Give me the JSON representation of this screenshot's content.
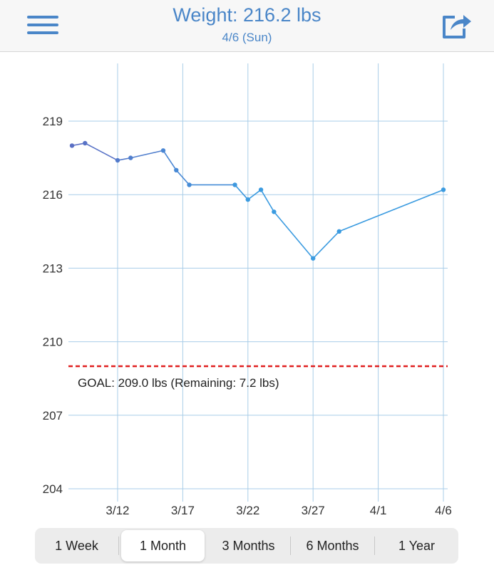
{
  "header": {
    "title": "Weight: 216.2 lbs",
    "subtitle": "4/6 (Sun)",
    "menu_icon": "hamburger-menu-icon",
    "share_icon": "share-icon"
  },
  "colors": {
    "accent": "#4a86c8",
    "line_early": "#5a6fc4",
    "line_late": "#3b9be0",
    "grid": "#a9cde8",
    "goal": "#e02020"
  },
  "chart_data": {
    "type": "line",
    "y_ticks": [
      "219",
      "216",
      "213",
      "210",
      "207",
      "204"
    ],
    "y_tick_values": [
      219,
      216,
      213,
      210,
      207,
      204
    ],
    "ylim": [
      204,
      220.8
    ],
    "x_ticks": [
      "3/12",
      "3/17",
      "3/22",
      "3/27",
      "4/1",
      "4/6"
    ],
    "x_tick_days": [
      12,
      17,
      22,
      27,
      32,
      37
    ],
    "xlim": [
      8.5,
      37
    ],
    "grid": true,
    "series": [
      {
        "x": [
          8.5,
          9.5,
          12,
          13,
          15.5,
          16.5,
          17.5,
          21,
          22,
          23,
          24,
          27,
          29,
          37
        ],
        "y": [
          218.0,
          218.1,
          217.4,
          217.5,
          217.8,
          217.0,
          216.4,
          216.4,
          215.8,
          216.2,
          215.3,
          213.4,
          214.5,
          216.2
        ]
      }
    ],
    "goal": {
      "value": 209.0,
      "label": "GOAL: 209.0 lbs (Remaining: 7.2 lbs)"
    }
  },
  "range_selector": {
    "options": [
      "1 Week",
      "1 Month",
      "3 Months",
      "6 Months",
      "1 Year"
    ],
    "selected": "1 Month"
  }
}
